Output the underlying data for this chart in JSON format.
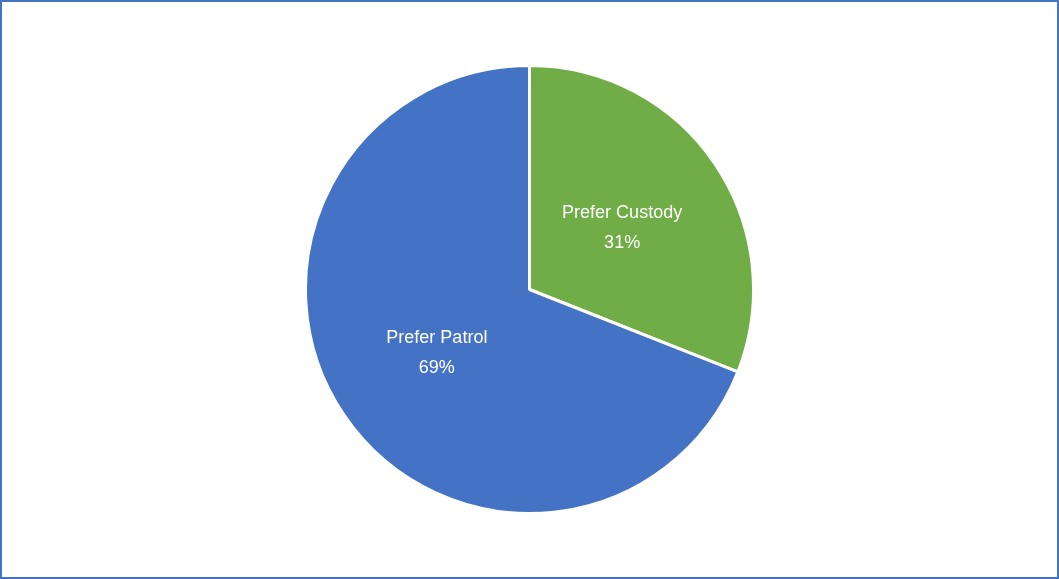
{
  "chart_data": {
    "type": "pie",
    "categories": [
      "Prefer Custody",
      "Prefer Patrol"
    ],
    "values": [
      31,
      69
    ],
    "value_labels": [
      "31%",
      "69%"
    ],
    "colors": [
      "#70ad47",
      "#4472c4"
    ],
    "legend": false
  }
}
